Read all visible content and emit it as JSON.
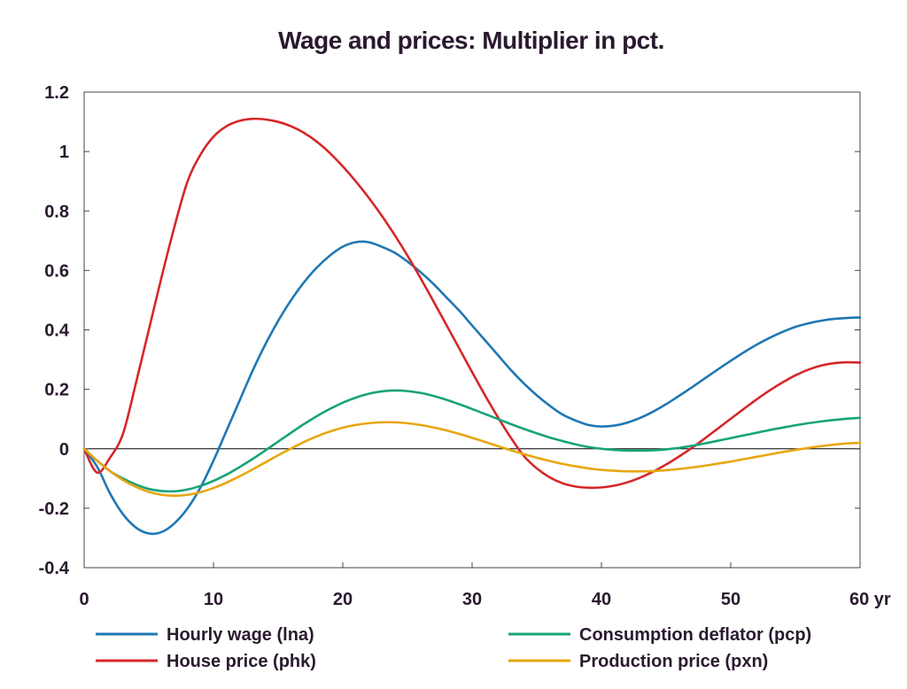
{
  "chart_data": {
    "type": "line",
    "title": "Wage and prices: Multiplier in pct.",
    "xlabel": "",
    "ylabel": "",
    "xlim": [
      0,
      60
    ],
    "ylim": [
      -0.4,
      1.2
    ],
    "x_ticks": [
      0,
      10,
      20,
      30,
      40,
      50,
      60
    ],
    "x_tick_labels": [
      "0",
      "10",
      "20",
      "30",
      "40",
      "50",
      "60 yr"
    ],
    "y_ticks": [
      -0.4,
      -0.2,
      0,
      0.2,
      0.4,
      0.6,
      0.8,
      1,
      1.2
    ],
    "y_tick_labels": [
      "-0.4",
      "-0.2",
      "0",
      "0.2",
      "0.4",
      "0.6",
      "0.8",
      "1",
      "1.2"
    ],
    "grid": false,
    "zero_line": true,
    "legend_position": "bottom",
    "series": [
      {
        "name": "Hourly wage (lna)",
        "color": "#1f77b4",
        "points": [
          [
            0,
            0
          ],
          [
            1,
            -0.06
          ],
          [
            2,
            -0.15
          ],
          [
            3,
            -0.22
          ],
          [
            4,
            -0.265
          ],
          [
            5,
            -0.285
          ],
          [
            6,
            -0.28
          ],
          [
            7,
            -0.25
          ],
          [
            8,
            -0.2
          ],
          [
            9,
            -0.13
          ],
          [
            10,
            -0.04
          ],
          [
            11,
            0.06
          ],
          [
            12,
            0.16
          ],
          [
            13,
            0.26
          ],
          [
            14,
            0.35
          ],
          [
            15,
            0.43
          ],
          [
            16,
            0.5
          ],
          [
            17,
            0.56
          ],
          [
            18,
            0.61
          ],
          [
            19,
            0.65
          ],
          [
            20,
            0.68
          ],
          [
            21,
            0.695
          ],
          [
            22,
            0.695
          ],
          [
            23,
            0.68
          ],
          [
            24,
            0.66
          ],
          [
            25,
            0.63
          ],
          [
            26,
            0.595
          ],
          [
            27,
            0.555
          ],
          [
            28,
            0.51
          ],
          [
            29,
            0.465
          ],
          [
            30,
            0.415
          ],
          [
            31,
            0.365
          ],
          [
            32,
            0.315
          ],
          [
            33,
            0.265
          ],
          [
            34,
            0.22
          ],
          [
            35,
            0.18
          ],
          [
            36,
            0.145
          ],
          [
            37,
            0.115
          ],
          [
            38,
            0.095
          ],
          [
            39,
            0.08
          ],
          [
            40,
            0.075
          ],
          [
            41,
            0.078
          ],
          [
            42,
            0.088
          ],
          [
            43,
            0.104
          ],
          [
            44,
            0.125
          ],
          [
            45,
            0.15
          ],
          [
            46,
            0.178
          ],
          [
            47,
            0.207
          ],
          [
            48,
            0.237
          ],
          [
            49,
            0.267
          ],
          [
            50,
            0.296
          ],
          [
            51,
            0.324
          ],
          [
            52,
            0.35
          ],
          [
            53,
            0.373
          ],
          [
            54,
            0.393
          ],
          [
            55,
            0.41
          ],
          [
            56,
            0.422
          ],
          [
            57,
            0.431
          ],
          [
            58,
            0.437
          ],
          [
            59,
            0.44
          ],
          [
            60,
            0.442
          ]
        ]
      },
      {
        "name": "House price (phk)",
        "color": "#d62728",
        "points": [
          [
            0,
            0
          ],
          [
            1,
            -0.08
          ],
          [
            2,
            -0.03
          ],
          [
            3,
            0.05
          ],
          [
            4,
            0.22
          ],
          [
            5,
            0.4
          ],
          [
            6,
            0.58
          ],
          [
            7,
            0.75
          ],
          [
            8,
            0.9
          ],
          [
            9,
            0.99
          ],
          [
            10,
            1.05
          ],
          [
            11,
            1.085
          ],
          [
            12,
            1.103
          ],
          [
            13,
            1.11
          ],
          [
            14,
            1.108
          ],
          [
            15,
            1.1
          ],
          [
            16,
            1.085
          ],
          [
            17,
            1.063
          ],
          [
            18,
            1.033
          ],
          [
            19,
            0.995
          ],
          [
            20,
            0.95
          ],
          [
            21,
            0.9
          ],
          [
            22,
            0.845
          ],
          [
            23,
            0.785
          ],
          [
            24,
            0.72
          ],
          [
            25,
            0.65
          ],
          [
            26,
            0.575
          ],
          [
            27,
            0.497
          ],
          [
            28,
            0.418
          ],
          [
            29,
            0.338
          ],
          [
            30,
            0.258
          ],
          [
            31,
            0.18
          ],
          [
            32,
            0.106
          ],
          [
            33,
            0.037
          ],
          [
            34,
            -0.024
          ],
          [
            35,
            -0.066
          ],
          [
            36,
            -0.096
          ],
          [
            37,
            -0.116
          ],
          [
            38,
            -0.127
          ],
          [
            39,
            -0.131
          ],
          [
            40,
            -0.13
          ],
          [
            41,
            -0.124
          ],
          [
            42,
            -0.113
          ],
          [
            43,
            -0.097
          ],
          [
            44,
            -0.077
          ],
          [
            45,
            -0.053
          ],
          [
            46,
            -0.026
          ],
          [
            47,
            0.003
          ],
          [
            48,
            0.035
          ],
          [
            49,
            0.068
          ],
          [
            50,
            0.101
          ],
          [
            51,
            0.134
          ],
          [
            52,
            0.166
          ],
          [
            53,
            0.196
          ],
          [
            54,
            0.223
          ],
          [
            55,
            0.247
          ],
          [
            56,
            0.266
          ],
          [
            57,
            0.28
          ],
          [
            58,
            0.288
          ],
          [
            59,
            0.291
          ],
          [
            60,
            0.29
          ]
        ]
      },
      {
        "name": "Consumption deflator (pcp)",
        "color": "#17a37a",
        "points": [
          [
            0,
            0
          ],
          [
            1,
            -0.04
          ],
          [
            2,
            -0.075
          ],
          [
            3,
            -0.1
          ],
          [
            4,
            -0.12
          ],
          [
            5,
            -0.135
          ],
          [
            6,
            -0.142
          ],
          [
            7,
            -0.143
          ],
          [
            8,
            -0.137
          ],
          [
            9,
            -0.125
          ],
          [
            10,
            -0.108
          ],
          [
            11,
            -0.087
          ],
          [
            12,
            -0.062
          ],
          [
            13,
            -0.035
          ],
          [
            14,
            -0.006
          ],
          [
            15,
            0.024
          ],
          [
            16,
            0.054
          ],
          [
            17,
            0.083
          ],
          [
            18,
            0.11
          ],
          [
            19,
            0.134
          ],
          [
            20,
            0.155
          ],
          [
            21,
            0.172
          ],
          [
            22,
            0.185
          ],
          [
            23,
            0.193
          ],
          [
            24,
            0.196
          ],
          [
            25,
            0.194
          ],
          [
            26,
            0.188
          ],
          [
            27,
            0.178
          ],
          [
            28,
            0.165
          ],
          [
            29,
            0.15
          ],
          [
            30,
            0.134
          ],
          [
            31,
            0.117
          ],
          [
            32,
            0.1
          ],
          [
            33,
            0.083
          ],
          [
            34,
            0.067
          ],
          [
            35,
            0.052
          ],
          [
            36,
            0.038
          ],
          [
            37,
            0.026
          ],
          [
            38,
            0.015
          ],
          [
            39,
            0.006
          ],
          [
            40,
            0.0
          ],
          [
            41,
            -0.004
          ],
          [
            42,
            -0.006
          ],
          [
            43,
            -0.006
          ],
          [
            44,
            -0.005
          ],
          [
            45,
            -0.002
          ],
          [
            46,
            0.003
          ],
          [
            47,
            0.01
          ],
          [
            48,
            0.018
          ],
          [
            49,
            0.027
          ],
          [
            50,
            0.036
          ],
          [
            51,
            0.045
          ],
          [
            52,
            0.054
          ],
          [
            53,
            0.063
          ],
          [
            54,
            0.071
          ],
          [
            55,
            0.079
          ],
          [
            56,
            0.086
          ],
          [
            57,
            0.092
          ],
          [
            58,
            0.097
          ],
          [
            59,
            0.101
          ],
          [
            60,
            0.104
          ]
        ]
      },
      {
        "name": "Production price (pxn)",
        "color": "#e8a60f",
        "points": [
          [
            0,
            0
          ],
          [
            1,
            -0.04
          ],
          [
            2,
            -0.075
          ],
          [
            3,
            -0.105
          ],
          [
            4,
            -0.128
          ],
          [
            5,
            -0.145
          ],
          [
            6,
            -0.155
          ],
          [
            7,
            -0.158
          ],
          [
            8,
            -0.155
          ],
          [
            9,
            -0.146
          ],
          [
            10,
            -0.132
          ],
          [
            11,
            -0.114
          ],
          [
            12,
            -0.093
          ],
          [
            13,
            -0.07
          ],
          [
            14,
            -0.046
          ],
          [
            15,
            -0.022
          ],
          [
            16,
            0.001
          ],
          [
            17,
            0.023
          ],
          [
            18,
            0.042
          ],
          [
            19,
            0.058
          ],
          [
            20,
            0.071
          ],
          [
            21,
            0.08
          ],
          [
            22,
            0.086
          ],
          [
            23,
            0.089
          ],
          [
            24,
            0.089
          ],
          [
            25,
            0.086
          ],
          [
            26,
            0.08
          ],
          [
            27,
            0.072
          ],
          [
            28,
            0.062
          ],
          [
            29,
            0.05
          ],
          [
            30,
            0.037
          ],
          [
            31,
            0.023
          ],
          [
            32,
            0.009
          ],
          [
            33,
            -0.005
          ],
          [
            34,
            -0.018
          ],
          [
            35,
            -0.03
          ],
          [
            36,
            -0.041
          ],
          [
            37,
            -0.051
          ],
          [
            38,
            -0.059
          ],
          [
            39,
            -0.066
          ],
          [
            40,
            -0.071
          ],
          [
            41,
            -0.074
          ],
          [
            42,
            -0.076
          ],
          [
            43,
            -0.076
          ],
          [
            44,
            -0.075
          ],
          [
            45,
            -0.072
          ],
          [
            46,
            -0.068
          ],
          [
            47,
            -0.063
          ],
          [
            48,
            -0.057
          ],
          [
            49,
            -0.05
          ],
          [
            50,
            -0.043
          ],
          [
            51,
            -0.035
          ],
          [
            52,
            -0.027
          ],
          [
            53,
            -0.019
          ],
          [
            54,
            -0.011
          ],
          [
            55,
            -0.004
          ],
          [
            56,
            0.003
          ],
          [
            57,
            0.009
          ],
          [
            58,
            0.014
          ],
          [
            59,
            0.018
          ],
          [
            60,
            0.02
          ]
        ]
      }
    ]
  }
}
